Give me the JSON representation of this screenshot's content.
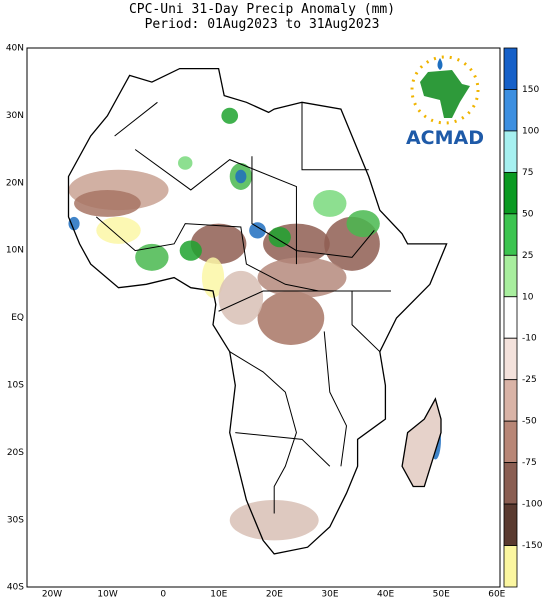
{
  "title": {
    "line1": "CPC-Uni 31-Day Precip Anomaly (mm)",
    "line2": "Period: 01Aug2023 to 31Aug2023"
  },
  "lat_labels": [
    "40N",
    "30N",
    "20N",
    "10N",
    "EQ",
    "10S",
    "20S",
    "30S",
    "40S"
  ],
  "lon_labels": [
    "20W",
    "10W",
    "0",
    "10E",
    "20E",
    "30E",
    "40E",
    "50E",
    "60E"
  ],
  "colorbar": {
    "labels": [
      "150",
      "100",
      "75",
      "50",
      "25",
      "10",
      "-10",
      "-25",
      "-50",
      "-75",
      "-100",
      "-150"
    ]
  },
  "logo": {
    "text": "ACMAD"
  }
}
